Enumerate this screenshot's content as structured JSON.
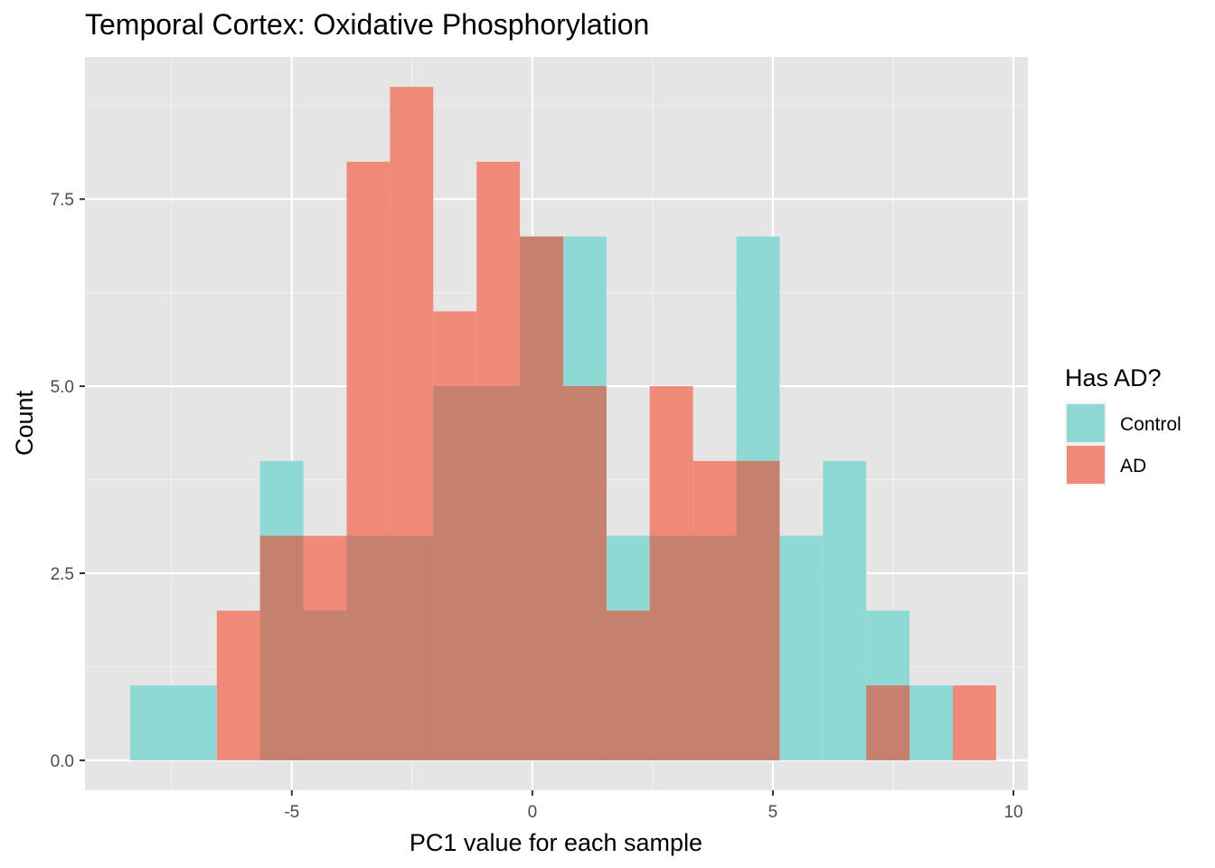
{
  "chart_data": {
    "type": "histogram",
    "title": "Temporal Cortex: Oxidative Phosphorylation",
    "xlabel": "PC1 value for each sample",
    "ylabel": "Count",
    "xlim": [
      -9.3,
      10.3
    ],
    "ylim": [
      -0.4,
      9.4
    ],
    "x_ticks": [
      -5,
      0,
      5,
      10
    ],
    "x_tick_labels": [
      "-5",
      "0",
      "5",
      "10"
    ],
    "y_ticks": [
      0,
      2.5,
      5,
      7.5
    ],
    "y_tick_labels": [
      "0.0",
      "2.5",
      "5.0",
      "7.5"
    ],
    "grid": true,
    "legend_position": "right",
    "legend_title": "Has AD?",
    "bin_edges": [
      -8.36,
      -7.46,
      -6.56,
      -5.66,
      -4.76,
      -3.86,
      -2.96,
      -2.06,
      -1.16,
      -0.26,
      0.64,
      1.54,
      2.44,
      3.34,
      4.24,
      5.14,
      6.04,
      6.94,
      7.84,
      8.74,
      9.64
    ],
    "series": [
      {
        "name": "Control",
        "color": "#8fd9d5",
        "values": [
          1,
          1,
          0,
          4,
          2,
          3,
          3,
          5,
          5,
          7,
          7,
          3,
          3,
          3,
          7,
          3,
          4,
          2,
          1,
          0
        ]
      },
      {
        "name": "AD",
        "color": "#f08a78",
        "values": [
          0,
          0,
          2,
          3,
          3,
          8,
          9,
          6,
          8,
          7,
          5,
          2,
          5,
          4,
          4,
          0,
          0,
          1,
          0,
          1
        ]
      }
    ],
    "overlap_color": "#c5816e"
  }
}
